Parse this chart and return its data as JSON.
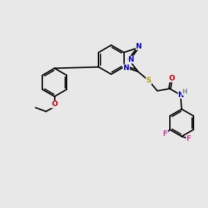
{
  "bg_color": "#e8e8e8",
  "atom_colors": {
    "C": "#000000",
    "N": "#0000cc",
    "O": "#cc0000",
    "S": "#b8a000",
    "F": "#cc44aa",
    "H": "#888888"
  },
  "bond_color": "#000000",
  "figsize": [
    3.0,
    3.0
  ],
  "dpi": 100,
  "lw": 1.4,
  "do": 0.035,
  "fs": 7.5
}
